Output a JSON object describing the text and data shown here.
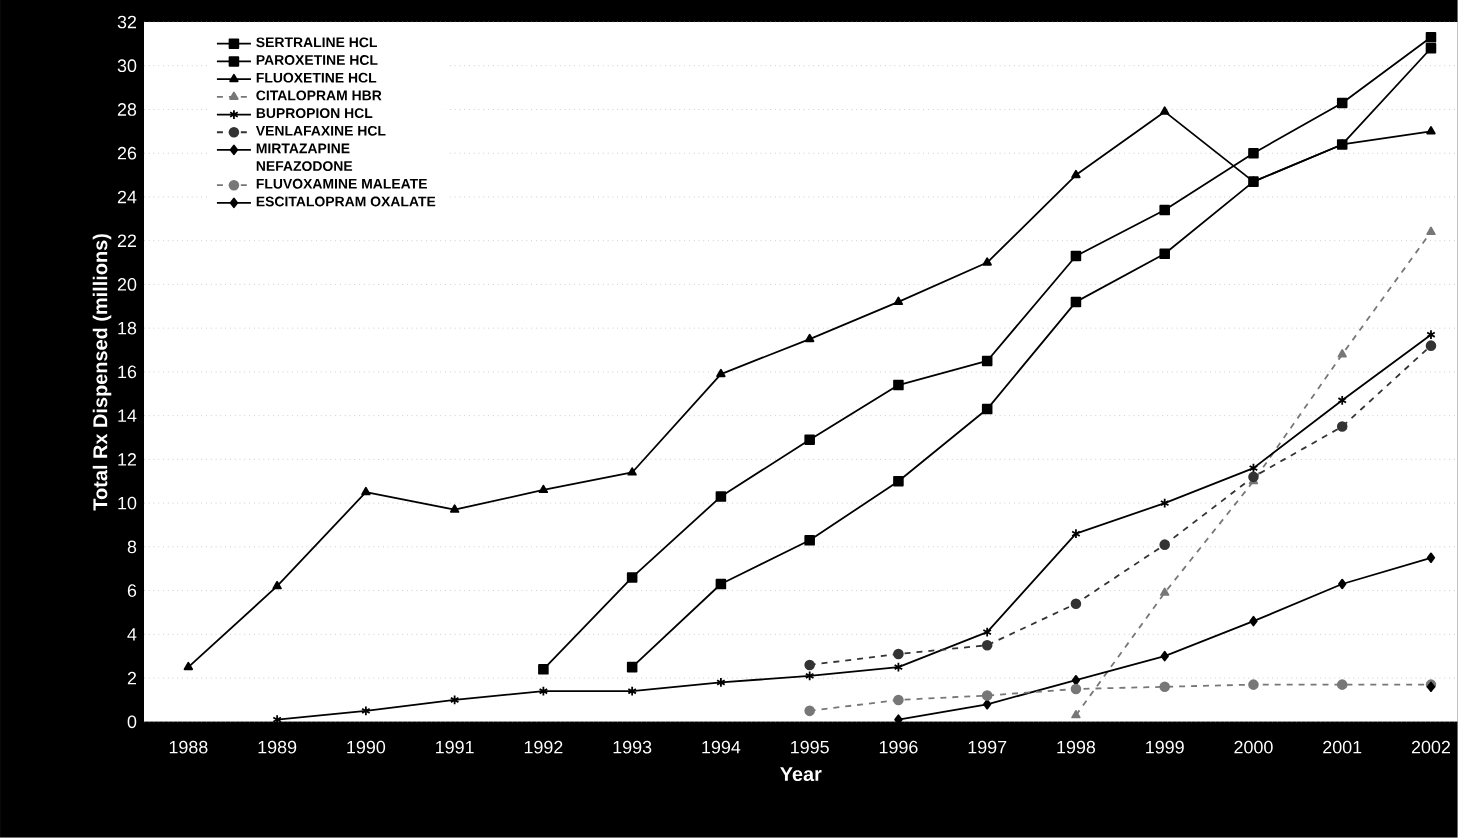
{
  "chart_data": {
    "type": "line",
    "xlabel": "Year",
    "ylabel": "Total Rx Dispensed (millions)",
    "x": [
      1988,
      1989,
      1990,
      1991,
      1992,
      1993,
      1994,
      1995,
      1996,
      1997,
      1998,
      1999,
      2000,
      2001,
      2002
    ],
    "xlim": [
      1987.5,
      2002.3
    ],
    "xticks": [
      1988,
      1989,
      1990,
      1991,
      1992,
      1993,
      1994,
      1995,
      1996,
      1997,
      1998,
      1999,
      2000,
      2001,
      2002
    ],
    "ylim": [
      0,
      32
    ],
    "yticks": [
      0,
      2,
      4,
      6,
      8,
      10,
      12,
      14,
      16,
      18,
      20,
      22,
      24,
      26,
      28,
      30,
      32
    ],
    "grid": "y",
    "legend": "top left",
    "series": [
      {
        "name": "SERTRALINE HCL",
        "color": "#000000",
        "marker": "square",
        "line_style": "solid",
        "values": [
          null,
          null,
          null,
          null,
          2.4,
          6.6,
          10.3,
          12.9,
          15.4,
          16.5,
          21.3,
          23.4,
          26.0,
          28.3,
          31.3
        ]
      },
      {
        "name": "PAROXETINE HCL",
        "color": "#000000",
        "marker": "square",
        "line_style": "solid",
        "values": [
          null,
          null,
          null,
          null,
          null,
          2.5,
          6.3,
          8.3,
          11.0,
          14.3,
          19.2,
          21.4,
          24.7,
          26.4,
          30.8
        ]
      },
      {
        "name": "FLUOXETINE HCL",
        "color": "#000000",
        "marker": "triangle",
        "line_style": "solid",
        "values": [
          2.5,
          6.2,
          10.5,
          9.7,
          10.6,
          11.4,
          15.9,
          17.5,
          19.2,
          21.0,
          25.0,
          27.9,
          24.7,
          26.4,
          27.0
        ]
      },
      {
        "name": "CITALOPRAM HBR",
        "color": "#777777",
        "marker": "triangle",
        "line_style": "dashed",
        "values": [
          null,
          null,
          null,
          null,
          null,
          null,
          null,
          null,
          null,
          null,
          0.3,
          5.9,
          11.0,
          16.8,
          22.4
        ]
      },
      {
        "name": "BUPROPION HCL",
        "color": "#000000",
        "marker": "cross",
        "line_style": "solid",
        "values": [
          null,
          0.1,
          0.5,
          1.0,
          1.4,
          1.4,
          1.8,
          2.1,
          2.5,
          4.1,
          8.6,
          10.0,
          11.6,
          14.7,
          17.7
        ]
      },
      {
        "name": "VENLAFAXINE HCL",
        "color": "#333333",
        "marker": "circle",
        "line_style": "dashed",
        "values": [
          null,
          null,
          null,
          null,
          null,
          null,
          null,
          2.6,
          3.1,
          3.5,
          5.4,
          8.1,
          11.2,
          13.5,
          17.2
        ]
      },
      {
        "name": "MIRTAZAPINE",
        "color": "#000000",
        "marker": "diamond",
        "line_style": "solid",
        "values": [
          null,
          null,
          null,
          null,
          null,
          null,
          null,
          null,
          0.1,
          0.8,
          1.9,
          3.0,
          4.6,
          6.3,
          7.5
        ]
      },
      {
        "name": "NEFAZODONE",
        "values": [
          null,
          null,
          null,
          null,
          null,
          null,
          null,
          null,
          null,
          null,
          null,
          null,
          null,
          null,
          null
        ]
      },
      {
        "name": "FLUVOXAMINE MALEATE",
        "color": "#777777",
        "marker": "circle",
        "line_style": "dashed",
        "values": [
          null,
          null,
          null,
          null,
          null,
          null,
          null,
          0.5,
          1.0,
          1.2,
          1.5,
          1.6,
          1.7,
          1.7,
          1.7
        ]
      },
      {
        "name": "ESCITALOPRAM OXALATE",
        "color": "#000000",
        "marker": "diamond",
        "line_style": "solid",
        "values": [
          null,
          null,
          null,
          null,
          null,
          null,
          null,
          null,
          null,
          null,
          null,
          null,
          null,
          null,
          1.6
        ]
      }
    ]
  }
}
